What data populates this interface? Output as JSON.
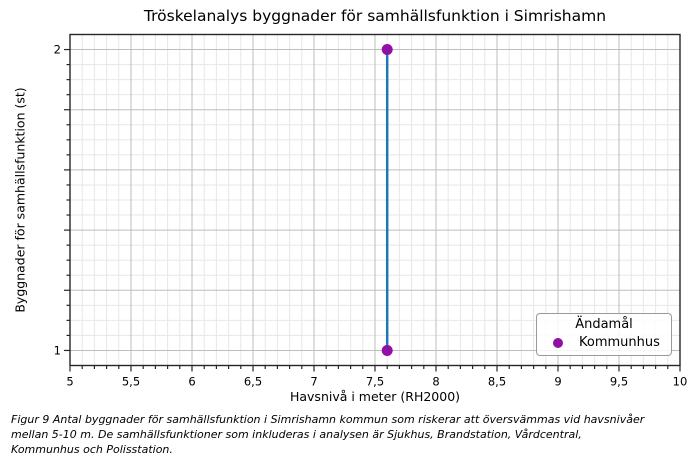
{
  "figure": {
    "caption_lines": [
      "Figur 9 Antal byggnader för samhällsfunktion i Simrishamn kommun som riskerar att översvämmas vid havsnivåer",
      "mellan 5-10 m. De samhällsfunktioner som inkluderas i analysen är Sjukhus, Brandstation, Vårdcentral,",
      "Kommunhus och Polisstation."
    ]
  },
  "chart_data": {
    "type": "line",
    "title": "Tröskelanalys byggnader för samhällsfunktion i Simrishamn",
    "xlabel": "Havsnivå i meter (RH2000)",
    "ylabel": "Byggnader för samhällsfunktion (st)",
    "xlim": [
      5,
      10
    ],
    "ylim": [
      0.95,
      2.05
    ],
    "x_ticks": [
      {
        "value": 5,
        "label": "5"
      },
      {
        "value": 5.5,
        "label": "5,5"
      },
      {
        "value": 6,
        "label": "6"
      },
      {
        "value": 6.5,
        "label": "6,5"
      },
      {
        "value": 7,
        "label": "7"
      },
      {
        "value": 7.5,
        "label": "7,5"
      },
      {
        "value": 8,
        "label": "8"
      },
      {
        "value": 8.5,
        "label": "8,5"
      },
      {
        "value": 9,
        "label": "9"
      },
      {
        "value": 9.5,
        "label": "9,5"
      },
      {
        "value": 10,
        "label": "10"
      }
    ],
    "x_minor_step": 0.1,
    "y_major_ticks": [
      1.0,
      1.2,
      1.4,
      1.6,
      1.8,
      2.0
    ],
    "y_tick_labels": [
      {
        "value": 1,
        "label": "1"
      },
      {
        "value": 2,
        "label": "2"
      }
    ],
    "y_minor_step": 0.05,
    "grid": true,
    "legend": {
      "title": "Ändamål",
      "position": "lower right",
      "items": [
        {
          "label": "Kommunhus",
          "marker_color": "#910fa5"
        }
      ]
    },
    "series": [
      {
        "name": "Kommunhus",
        "x": [
          7.6,
          7.6
        ],
        "y": [
          1,
          2
        ],
        "line_color": "#1f77b4",
        "marker": "circle",
        "marker_color": "#910fa5"
      }
    ],
    "colors": {
      "grid_major": "#bdbdbd",
      "grid_minor": "#e7e7e7",
      "spine": "#262626",
      "tick": "#262626",
      "text": "#000000"
    }
  }
}
